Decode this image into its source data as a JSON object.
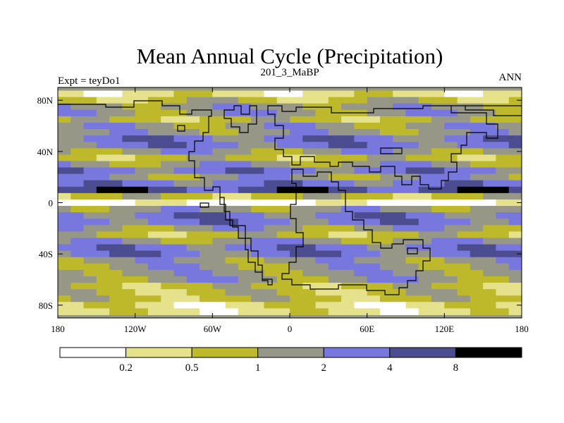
{
  "chart_data": {
    "type": "heatmap",
    "title": "Mean Annual Cycle (Precipitation)",
    "subtitle_left": "Expt = teyDo1",
    "subtitle_center": "201_3_MaBP",
    "subtitle_right": "ANN",
    "x_ticks": [
      {
        "value": -180,
        "label": "180"
      },
      {
        "value": -120,
        "label": "120W"
      },
      {
        "value": -60,
        "label": "60W"
      },
      {
        "value": 0,
        "label": "0"
      },
      {
        "value": 60,
        "label": "60E"
      },
      {
        "value": 120,
        "label": "120E"
      },
      {
        "value": 180,
        "label": "180"
      }
    ],
    "y_ticks": [
      {
        "value": 80,
        "label": "80N"
      },
      {
        "value": 40,
        "label": "40N"
      },
      {
        "value": 0,
        "label": "0"
      },
      {
        "value": -40,
        "label": "40S"
      },
      {
        "value": -80,
        "label": "80S"
      }
    ],
    "xlim": [
      -180,
      180
    ],
    "ylim": [
      -90,
      90
    ],
    "colorbar": {
      "labels": [
        "0.2",
        "0.5",
        "1",
        "2",
        "4",
        "8"
      ],
      "colors": [
        "#ffffff",
        "#e6e28c",
        "#bdb92a",
        "#979788",
        "#7777dd",
        "#4c4c90",
        "#000000"
      ]
    },
    "zonal_profile": [
      {
        "lat": 85,
        "cat": 1
      },
      {
        "lat": 80,
        "cat": 2
      },
      {
        "lat": 75,
        "cat": 3
      },
      {
        "lat": 70,
        "cat": 3
      },
      {
        "lat": 65,
        "cat": 2
      },
      {
        "lat": 60,
        "cat": 3
      },
      {
        "lat": 55,
        "cat": 3
      },
      {
        "lat": 50,
        "cat": 4
      },
      {
        "lat": 45,
        "cat": 4
      },
      {
        "lat": 40,
        "cat": 3
      },
      {
        "lat": 35,
        "cat": 2
      },
      {
        "lat": 30,
        "cat": 3
      },
      {
        "lat": 25,
        "cat": 4
      },
      {
        "lat": 20,
        "cat": 3
      },
      {
        "lat": 15,
        "cat": 4
      },
      {
        "lat": 10,
        "cat": 5
      },
      {
        "lat": 5,
        "cat": 2
      },
      {
        "lat": 0,
        "cat": 0
      },
      {
        "lat": -5,
        "cat": 3
      },
      {
        "lat": -10,
        "cat": 4
      },
      {
        "lat": -15,
        "cat": 4
      },
      {
        "lat": -20,
        "cat": 3
      },
      {
        "lat": -25,
        "cat": 2
      },
      {
        "lat": -30,
        "cat": 3
      },
      {
        "lat": -35,
        "cat": 4
      },
      {
        "lat": -40,
        "cat": 4
      },
      {
        "lat": -45,
        "cat": 3
      },
      {
        "lat": -50,
        "cat": 3
      },
      {
        "lat": -55,
        "cat": 3
      },
      {
        "lat": -60,
        "cat": 3
      },
      {
        "lat": -65,
        "cat": 2
      },
      {
        "lat": -70,
        "cat": 2
      },
      {
        "lat": -75,
        "cat": 2
      },
      {
        "lat": -80,
        "cat": 1
      },
      {
        "lat": -85,
        "cat": 1
      }
    ]
  }
}
